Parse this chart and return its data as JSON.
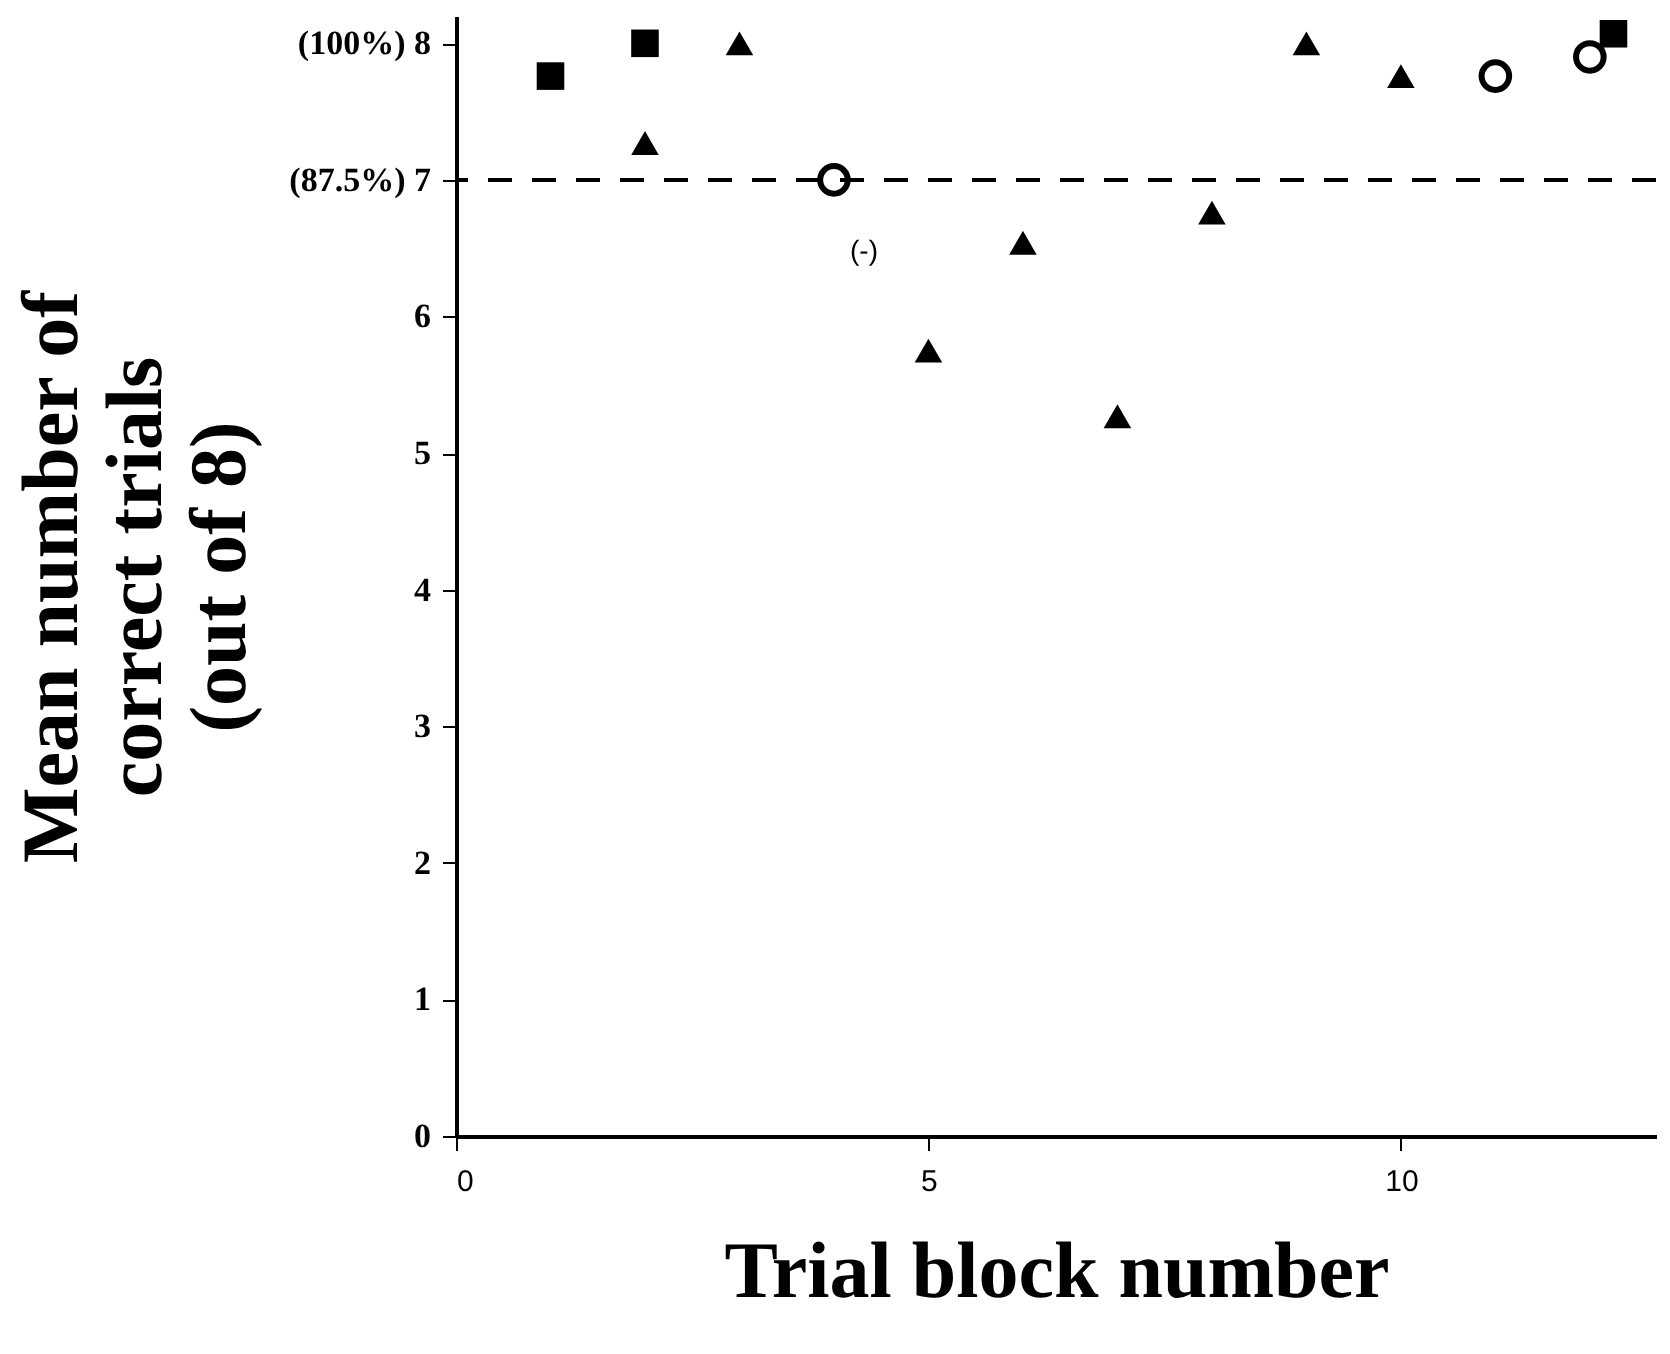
{
  "chart_data": {
    "type": "scatter",
    "xlabel": "Trial block number",
    "ylabel": "Mean number of\ncorrect trials\n(out of 8)",
    "xlim": [
      0,
      12.7
    ],
    "ylim": [
      0,
      8.2
    ],
    "xticks": [
      0,
      5,
      10
    ],
    "yticks": [
      0,
      1,
      2,
      3,
      4,
      5,
      6,
      {
        "value": 7,
        "label": "(87.5%) 7"
      },
      {
        "value": 8,
        "label": "(100%) 8"
      }
    ],
    "grid": false,
    "series": [
      {
        "color": "#000000",
        "marker": "square",
        "x": [
          1,
          2
        ],
        "values": [
          7.76,
          8.0
        ]
      },
      {
        "color": "#000000",
        "marker": "triangle",
        "x": [
          2,
          3,
          6,
          7,
          8,
          9
        ],
        "values": [
          7.27,
          8.0,
          6.54,
          5.27,
          6.76,
          8.0
        ]
      },
      {
        "color": "#000000",
        "marker": "triangle",
        "x": [
          5,
          10
        ],
        "values": [
          5.75,
          7.76
        ]
      },
      {
        "color": "#000000",
        "marker": "circle",
        "x": [
          4,
          11,
          12
        ],
        "values": [
          7.0,
          7.76,
          7.9
        ]
      },
      {
        "color": "#000000",
        "marker": "square",
        "x": [
          12.25
        ],
        "values": [
          8.07
        ]
      }
    ],
    "ref_lines": [
      {
        "axis": "y",
        "value": 7,
        "line_style": "dashed"
      }
    ],
    "annotations": [
      "(-)"
    ]
  }
}
